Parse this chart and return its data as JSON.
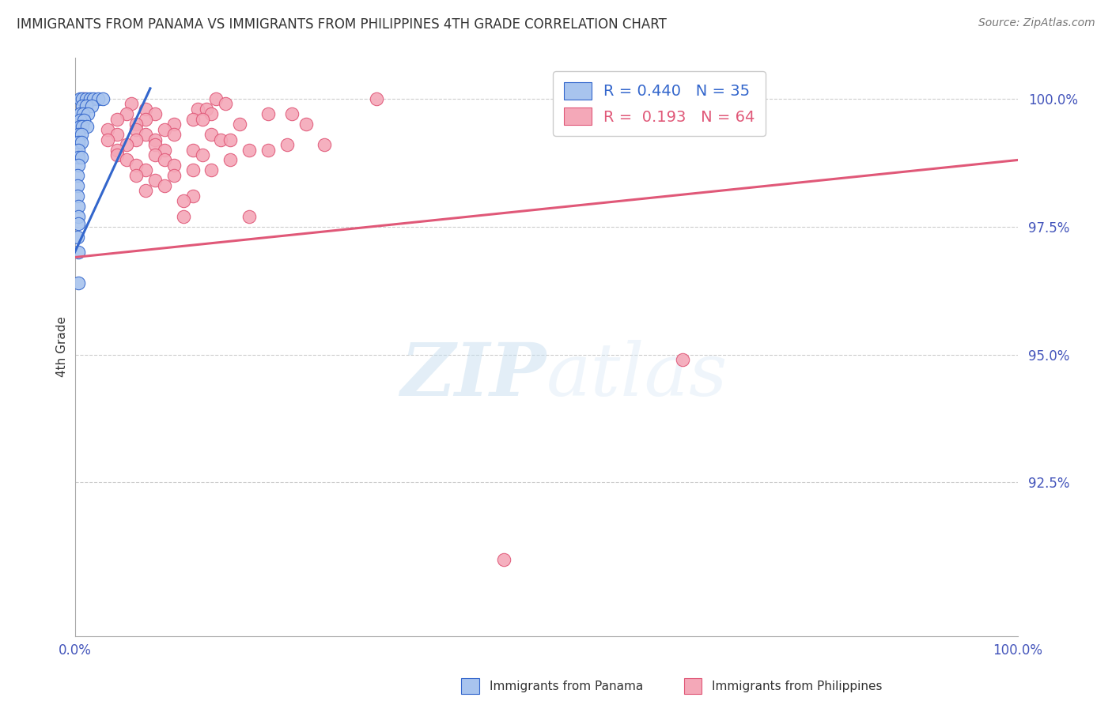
{
  "title": "IMMIGRANTS FROM PANAMA VS IMMIGRANTS FROM PHILIPPINES 4TH GRADE CORRELATION CHART",
  "source": "Source: ZipAtlas.com",
  "ylabel": "4th Grade",
  "ytick_labels": [
    "100.0%",
    "97.5%",
    "95.0%",
    "92.5%"
  ],
  "ytick_values": [
    1.0,
    0.975,
    0.95,
    0.925
  ],
  "xlim": [
    0.0,
    1.0
  ],
  "ylim": [
    0.895,
    1.008
  ],
  "legend_panama_r": "R = 0.440",
  "legend_panama_n": "N = 35",
  "legend_philippines_r": "R =  0.193",
  "legend_philippines_n": "N = 64",
  "panama_color": "#A8C4EE",
  "philippines_color": "#F4A8B8",
  "panama_line_color": "#3366CC",
  "philippines_line_color": "#E05878",
  "panama_scatter": [
    [
      0.005,
      1.0
    ],
    [
      0.008,
      1.0
    ],
    [
      0.012,
      1.0
    ],
    [
      0.016,
      1.0
    ],
    [
      0.02,
      1.0
    ],
    [
      0.025,
      1.0
    ],
    [
      0.03,
      1.0
    ],
    [
      0.008,
      0.9985
    ],
    [
      0.012,
      0.9985
    ],
    [
      0.018,
      0.9985
    ],
    [
      0.005,
      0.997
    ],
    [
      0.009,
      0.997
    ],
    [
      0.014,
      0.997
    ],
    [
      0.005,
      0.9958
    ],
    [
      0.01,
      0.9958
    ],
    [
      0.005,
      0.9945
    ],
    [
      0.008,
      0.9945
    ],
    [
      0.013,
      0.9945
    ],
    [
      0.004,
      0.993
    ],
    [
      0.007,
      0.993
    ],
    [
      0.004,
      0.9915
    ],
    [
      0.007,
      0.9915
    ],
    [
      0.004,
      0.99
    ],
    [
      0.004,
      0.9885
    ],
    [
      0.007,
      0.9885
    ],
    [
      0.004,
      0.987
    ],
    [
      0.003,
      0.985
    ],
    [
      0.003,
      0.983
    ],
    [
      0.003,
      0.981
    ],
    [
      0.004,
      0.979
    ],
    [
      0.004,
      0.977
    ],
    [
      0.004,
      0.9755
    ],
    [
      0.003,
      0.973
    ],
    [
      0.004,
      0.97
    ],
    [
      0.004,
      0.964
    ]
  ],
  "philippines_scatter": [
    [
      0.01,
      1.0
    ],
    [
      0.15,
      1.0
    ],
    [
      0.32,
      1.0
    ],
    [
      0.06,
      0.999
    ],
    [
      0.16,
      0.999
    ],
    [
      0.075,
      0.998
    ],
    [
      0.13,
      0.998
    ],
    [
      0.14,
      0.998
    ],
    [
      0.055,
      0.997
    ],
    [
      0.085,
      0.997
    ],
    [
      0.145,
      0.997
    ],
    [
      0.205,
      0.997
    ],
    [
      0.23,
      0.997
    ],
    [
      0.045,
      0.996
    ],
    [
      0.075,
      0.996
    ],
    [
      0.125,
      0.996
    ],
    [
      0.135,
      0.996
    ],
    [
      0.065,
      0.995
    ],
    [
      0.105,
      0.995
    ],
    [
      0.175,
      0.995
    ],
    [
      0.245,
      0.995
    ],
    [
      0.035,
      0.994
    ],
    [
      0.065,
      0.994
    ],
    [
      0.095,
      0.994
    ],
    [
      0.045,
      0.993
    ],
    [
      0.075,
      0.993
    ],
    [
      0.105,
      0.993
    ],
    [
      0.145,
      0.993
    ],
    [
      0.035,
      0.992
    ],
    [
      0.065,
      0.992
    ],
    [
      0.085,
      0.992
    ],
    [
      0.155,
      0.992
    ],
    [
      0.165,
      0.992
    ],
    [
      0.055,
      0.991
    ],
    [
      0.085,
      0.991
    ],
    [
      0.225,
      0.991
    ],
    [
      0.265,
      0.991
    ],
    [
      0.045,
      0.99
    ],
    [
      0.095,
      0.99
    ],
    [
      0.125,
      0.99
    ],
    [
      0.185,
      0.99
    ],
    [
      0.205,
      0.99
    ],
    [
      0.045,
      0.989
    ],
    [
      0.085,
      0.989
    ],
    [
      0.135,
      0.989
    ],
    [
      0.055,
      0.988
    ],
    [
      0.095,
      0.988
    ],
    [
      0.165,
      0.988
    ],
    [
      0.065,
      0.987
    ],
    [
      0.105,
      0.987
    ],
    [
      0.075,
      0.986
    ],
    [
      0.125,
      0.986
    ],
    [
      0.145,
      0.986
    ],
    [
      0.065,
      0.985
    ],
    [
      0.105,
      0.985
    ],
    [
      0.085,
      0.984
    ],
    [
      0.095,
      0.983
    ],
    [
      0.075,
      0.982
    ],
    [
      0.125,
      0.981
    ],
    [
      0.115,
      0.98
    ],
    [
      0.115,
      0.977
    ],
    [
      0.185,
      0.977
    ],
    [
      0.645,
      0.949
    ],
    [
      0.455,
      0.91
    ]
  ],
  "panama_line": {
    "x0": 0.0,
    "y0": 0.97,
    "x1": 0.08,
    "y1": 1.002
  },
  "philippines_line": {
    "x0": 0.0,
    "y0": 0.969,
    "x1": 1.0,
    "y1": 0.988
  },
  "watermark_zip": "ZIP",
  "watermark_atlas": "atlas",
  "background_color": "#ffffff",
  "grid_color": "#cccccc",
  "title_color": "#333333",
  "ytick_color": "#4455BB",
  "xtick_color": "#4455BB"
}
